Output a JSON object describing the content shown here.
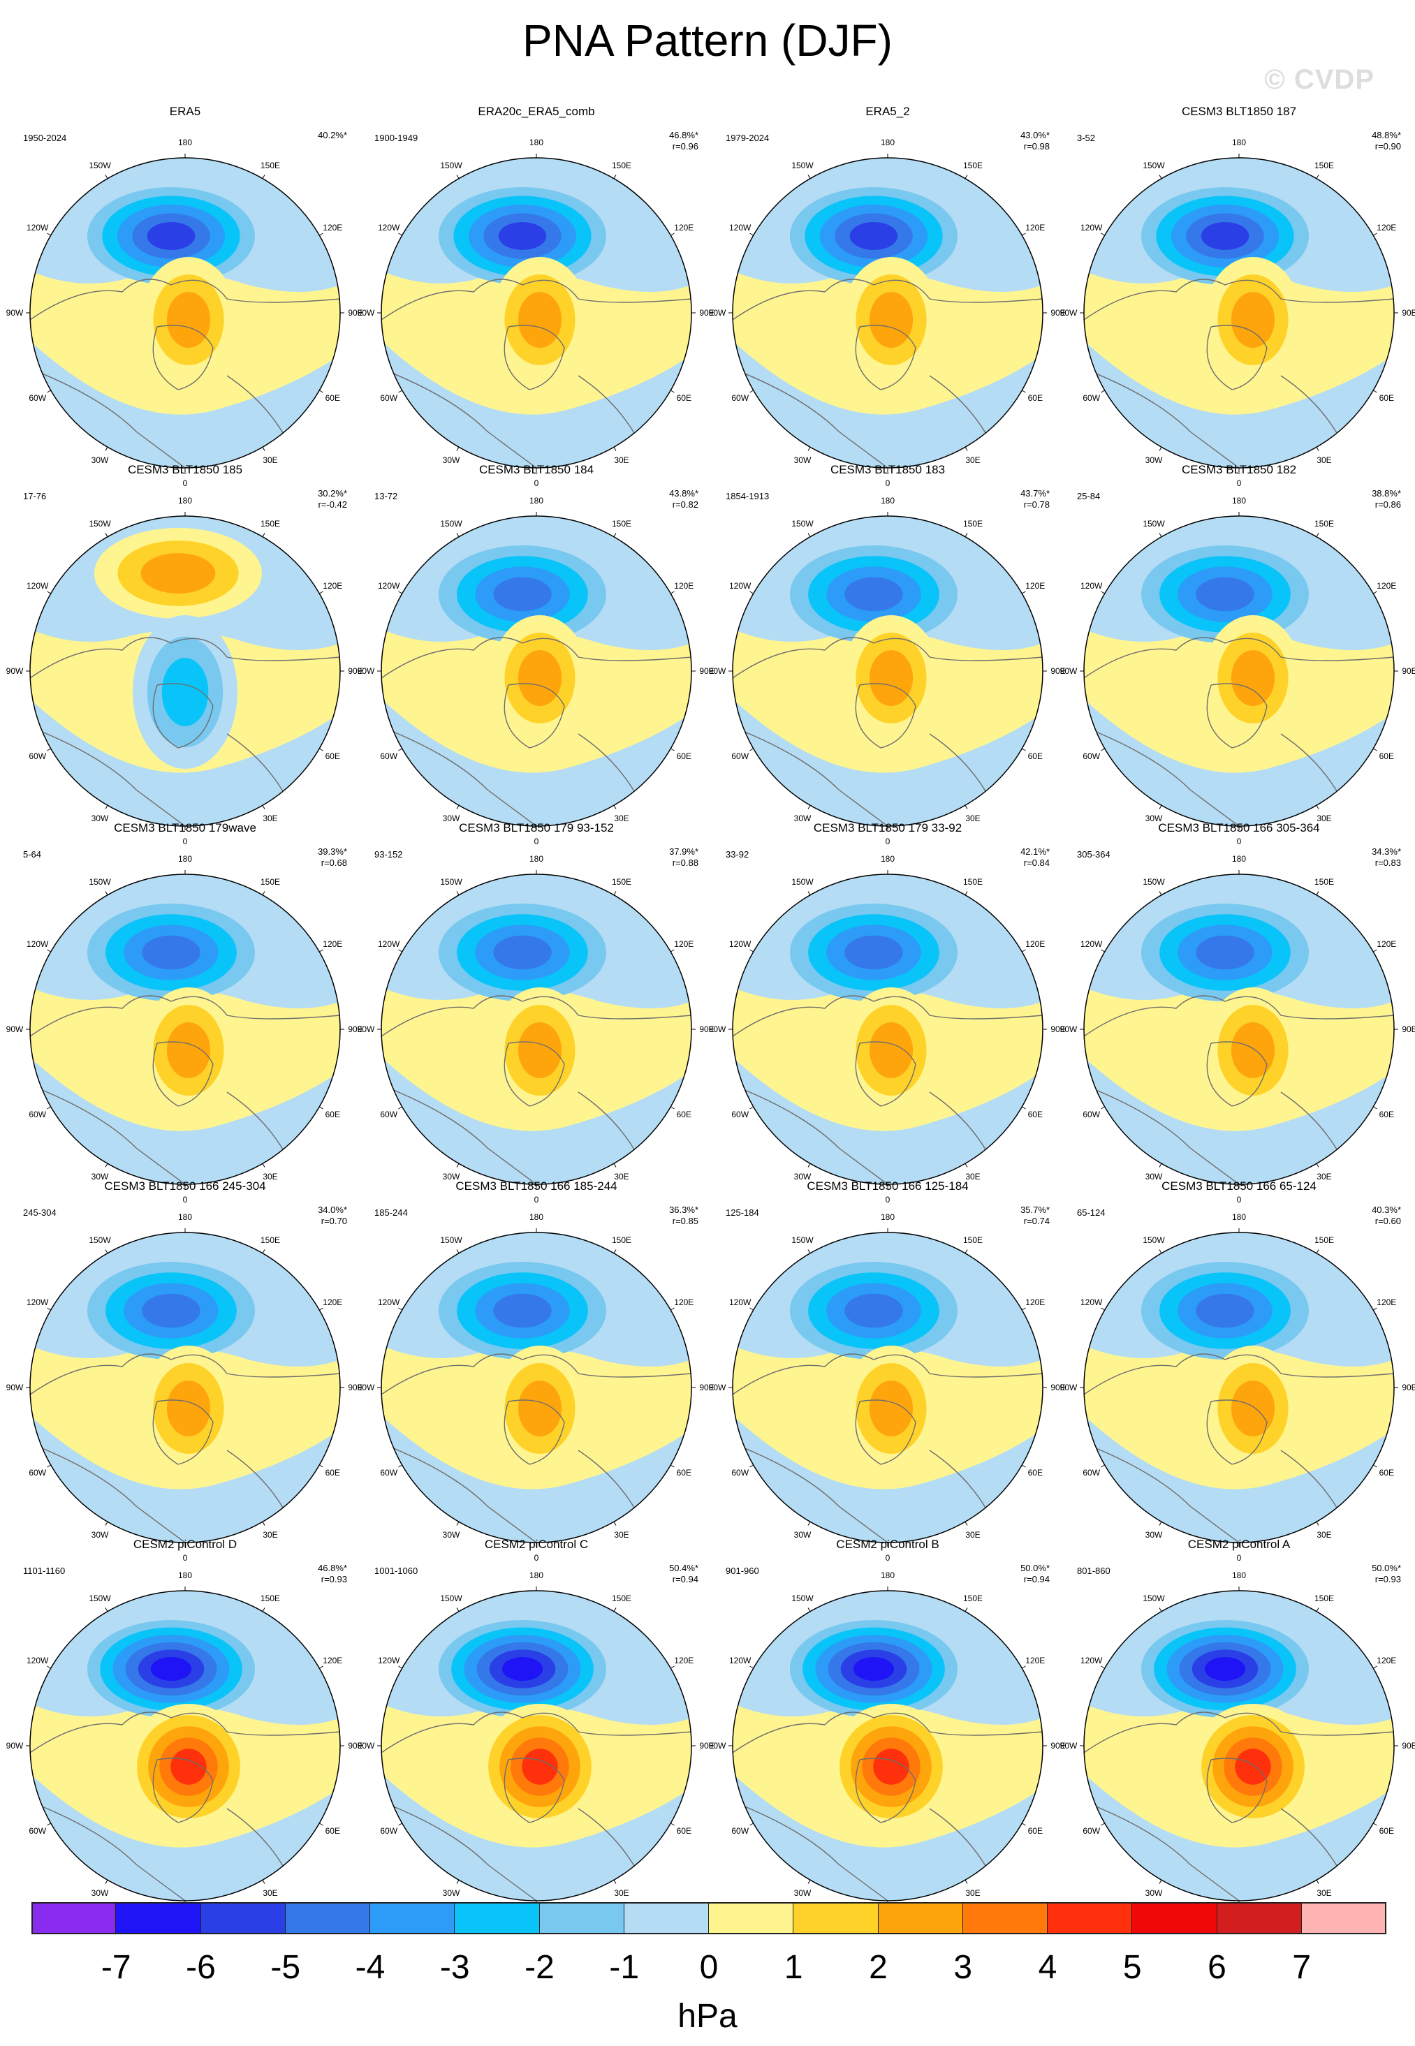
{
  "title": "PNA Pattern (DJF)",
  "watermark": "© CVDP",
  "lon_labels": [
    "180",
    "150E",
    "120E",
    "90E",
    "60E",
    "30E",
    "0",
    "30W",
    "60W",
    "90W",
    "120W",
    "150W"
  ],
  "colorbar": {
    "units": "hPa",
    "ticks": [
      "-7",
      "-6",
      "-5",
      "-4",
      "-3",
      "-2",
      "-1",
      "0",
      "1",
      "2",
      "3",
      "4",
      "5",
      "6",
      "7"
    ],
    "colors": [
      "#8a2cf0",
      "#1e14f5",
      "#2a40e6",
      "#3478ea",
      "#2c9cf8",
      "#08c4f8",
      "#78c8f0",
      "#b4dcf4",
      "#fff590",
      "#ffd229",
      "#ffa50c",
      "#ff7a0a",
      "#ff300c",
      "#f00808",
      "#d21e1e",
      "#ffb4b4"
    ]
  },
  "panels": [
    {
      "title": "ERA5",
      "period": "1950-2024",
      "pct": "40.2%*",
      "r": ""
    },
    {
      "title": "ERA20c_ERA5_comb",
      "period": "1900-1949",
      "pct": "46.8%*",
      "r": "r=0.96"
    },
    {
      "title": "ERA5_2",
      "period": "1979-2024",
      "pct": "43.0%*",
      "r": "r=0.98"
    },
    {
      "title": "CESM3 BLT1850 187",
      "period": "3-52",
      "pct": "48.8%*",
      "r": "r=0.90"
    },
    {
      "title": "CESM3 BLT1850 185",
      "period": "17-76",
      "pct": "30.2%*",
      "r": "r=-0.42"
    },
    {
      "title": "CESM3 BLT1850 184",
      "period": "13-72",
      "pct": "43.8%*",
      "r": "r=0.82"
    },
    {
      "title": "CESM3 BLT1850 183",
      "period": "1854-1913",
      "pct": "43.7%*",
      "r": "r=0.78"
    },
    {
      "title": "CESM3 BLT1850 182",
      "period": "25-84",
      "pct": "38.8%*",
      "r": "r=0.86"
    },
    {
      "title": "CESM3 BLT1850 179wave",
      "period": "5-64",
      "pct": "39.3%*",
      "r": "r=0.68"
    },
    {
      "title": "CESM3 BLT1850 179 93-152",
      "period": "93-152",
      "pct": "37.9%*",
      "r": "r=0.88"
    },
    {
      "title": "CESM3 BLT1850 179 33-92",
      "period": "33-92",
      "pct": "42.1%*",
      "r": "r=0.84"
    },
    {
      "title": "CESM3 BLT1850 166 305-364",
      "period": "305-364",
      "pct": "34.3%*",
      "r": "r=0.83"
    },
    {
      "title": "CESM3 BLT1850 166 245-304",
      "period": "245-304",
      "pct": "34.0%*",
      "r": "r=0.70"
    },
    {
      "title": "CESM3 BLT1850 166 185-244",
      "period": "185-244",
      "pct": "36.3%*",
      "r": "r=0.85"
    },
    {
      "title": "CESM3 BLT1850 166 125-184",
      "period": "125-184",
      "pct": "35.7%*",
      "r": "r=0.74"
    },
    {
      "title": "CESM3 BLT1850 166 65-124",
      "period": "65-124",
      "pct": "40.3%*",
      "r": "r=0.60"
    },
    {
      "title": "CESM2 piControl D",
      "period": "1101-1160",
      "pct": "46.8%*",
      "r": "r=0.93"
    },
    {
      "title": "CESM2 piControl C",
      "period": "1001-1060",
      "pct": "50.4%*",
      "r": "r=0.94"
    },
    {
      "title": "CESM2 piControl B",
      "period": "901-960",
      "pct": "50.0%*",
      "r": "r=0.94"
    },
    {
      "title": "CESM2 piControl A",
      "period": "801-860",
      "pct": "50.0%*",
      "r": "r=0.93"
    }
  ]
}
